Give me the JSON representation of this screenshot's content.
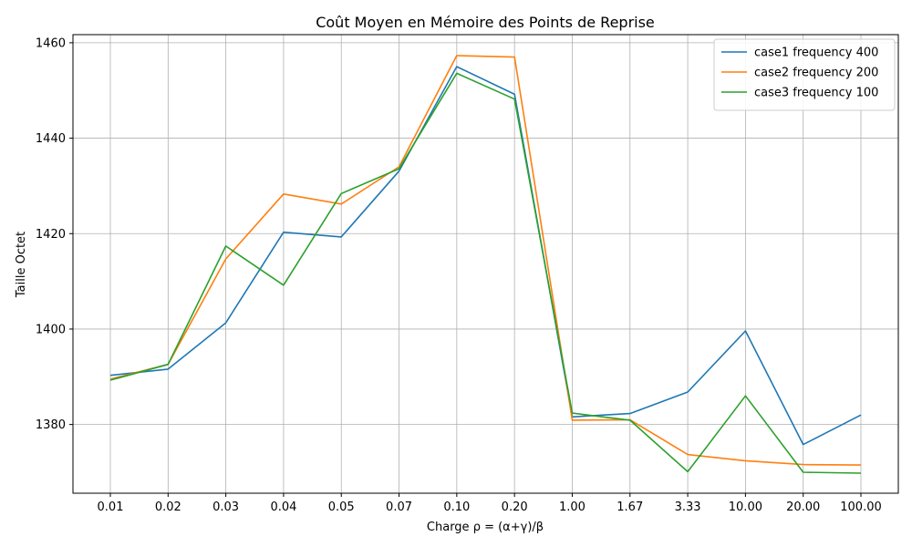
{
  "chart_data": {
    "type": "line",
    "title": "Coût Moyen en Mémoire des Points de Reprise",
    "xlabel": "Charge ρ = (α+γ)/β",
    "ylabel": "Taille Octet",
    "categories": [
      "0.01",
      "0.02",
      "0.03",
      "0.04",
      "0.05",
      "0.07",
      "0.10",
      "0.20",
      "1.00",
      "1.67",
      "3.33",
      "10.00",
      "20.00",
      "100.00"
    ],
    "ylim": [
      1365.6,
      1461.7
    ],
    "yticks": [
      1380,
      1400,
      1420,
      1440,
      1460
    ],
    "grid": true,
    "legend_position": "top-right",
    "series": [
      {
        "name": "case1 frequency 400",
        "color": "#1f77b4",
        "values": [
          1390.3,
          1391.6,
          1401.3,
          1420.3,
          1419.3,
          1433.1,
          1455.0,
          1449.2,
          1381.6,
          1382.3,
          1386.8,
          1399.6,
          1375.8,
          1382.0
        ]
      },
      {
        "name": "case2 frequency 200",
        "color": "#ff7f0e",
        "values": [
          1389.5,
          1392.6,
          1414.7,
          1428.3,
          1426.2,
          1434.0,
          1457.3,
          1457.0,
          1380.9,
          1381.0,
          1373.7,
          1372.4,
          1371.6,
          1371.5
        ]
      },
      {
        "name": "case3 frequency 100",
        "color": "#2ca02c",
        "values": [
          1389.3,
          1392.6,
          1417.4,
          1409.2,
          1428.4,
          1433.6,
          1453.6,
          1448.2,
          1382.4,
          1380.9,
          1370.1,
          1386.0,
          1370.0,
          1369.8
        ]
      }
    ]
  }
}
